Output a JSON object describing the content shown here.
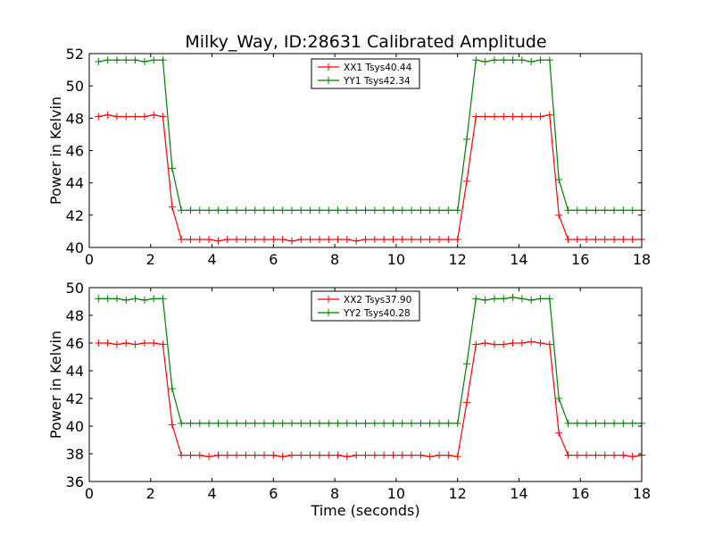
{
  "figure": {
    "title": "Milky_Way, ID:28631 Calibrated Amplitude"
  },
  "chart_data": [
    {
      "type": "line",
      "xlabel": "",
      "ylabel": "Power in Kelvin",
      "xlim": [
        0,
        18
      ],
      "ylim": [
        40,
        52
      ],
      "xticks": [
        0,
        2,
        4,
        6,
        8,
        10,
        12,
        14,
        16,
        18
      ],
      "yticks": [
        40,
        42,
        44,
        46,
        48,
        50,
        52
      ],
      "legend_position": "top-center",
      "x": [
        0.3,
        0.6,
        0.9,
        1.2,
        1.5,
        1.8,
        2.1,
        2.4,
        2.7,
        3.0,
        3.3,
        3.6,
        3.9,
        4.2,
        4.5,
        4.8,
        5.1,
        5.4,
        5.7,
        6.0,
        6.3,
        6.6,
        6.9,
        7.2,
        7.5,
        7.8,
        8.1,
        8.4,
        8.7,
        9.0,
        9.3,
        9.6,
        9.9,
        10.2,
        10.5,
        10.8,
        11.1,
        11.4,
        11.7,
        12.0,
        12.3,
        12.6,
        12.9,
        13.2,
        13.5,
        13.8,
        14.1,
        14.4,
        14.7,
        15.0,
        15.3,
        15.6,
        15.9,
        16.2,
        16.5,
        16.8,
        17.1,
        17.4,
        17.7,
        18.0
      ],
      "series": [
        {
          "name": "XX1 Tsys40.44",
          "color": "#ff0000",
          "values": [
            48.1,
            48.2,
            48.1,
            48.1,
            48.1,
            48.1,
            48.2,
            48.1,
            42.5,
            40.5,
            40.5,
            40.5,
            40.5,
            40.4,
            40.5,
            40.5,
            40.5,
            40.5,
            40.5,
            40.5,
            40.5,
            40.4,
            40.5,
            40.5,
            40.5,
            40.5,
            40.5,
            40.5,
            40.4,
            40.5,
            40.5,
            40.5,
            40.5,
            40.5,
            40.5,
            40.5,
            40.5,
            40.5,
            40.5,
            40.5,
            44.1,
            48.1,
            48.1,
            48.1,
            48.1,
            48.1,
            48.1,
            48.1,
            48.1,
            48.2,
            42.0,
            40.5,
            40.5,
            40.5,
            40.5,
            40.5,
            40.5,
            40.5,
            40.5,
            40.5
          ]
        },
        {
          "name": "YY1 Tsys42.34",
          "color": "#008000",
          "values": [
            51.5,
            51.6,
            51.6,
            51.6,
            51.6,
            51.5,
            51.6,
            51.6,
            44.9,
            42.3,
            42.3,
            42.3,
            42.3,
            42.3,
            42.3,
            42.3,
            42.3,
            42.3,
            42.3,
            42.3,
            42.3,
            42.3,
            42.3,
            42.3,
            42.3,
            42.3,
            42.3,
            42.3,
            42.3,
            42.3,
            42.3,
            42.3,
            42.3,
            42.3,
            42.3,
            42.3,
            42.3,
            42.3,
            42.3,
            42.3,
            46.7,
            51.6,
            51.5,
            51.6,
            51.6,
            51.6,
            51.6,
            51.5,
            51.6,
            51.6,
            44.2,
            42.3,
            42.3,
            42.3,
            42.3,
            42.3,
            42.3,
            42.3,
            42.3,
            42.3
          ]
        }
      ]
    },
    {
      "type": "line",
      "xlabel": "Time (seconds)",
      "ylabel": "Power in Kelvin",
      "xlim": [
        0,
        18
      ],
      "ylim": [
        36,
        50
      ],
      "xticks": [
        0,
        2,
        4,
        6,
        8,
        10,
        12,
        14,
        16,
        18
      ],
      "yticks": [
        36,
        38,
        40,
        42,
        44,
        46,
        48,
        50
      ],
      "legend_position": "top-center",
      "x": [
        0.3,
        0.6,
        0.9,
        1.2,
        1.5,
        1.8,
        2.1,
        2.4,
        2.7,
        3.0,
        3.3,
        3.6,
        3.9,
        4.2,
        4.5,
        4.8,
        5.1,
        5.4,
        5.7,
        6.0,
        6.3,
        6.6,
        6.9,
        7.2,
        7.5,
        7.8,
        8.1,
        8.4,
        8.7,
        9.0,
        9.3,
        9.6,
        9.9,
        10.2,
        10.5,
        10.8,
        11.1,
        11.4,
        11.7,
        12.0,
        12.3,
        12.6,
        12.9,
        13.2,
        13.5,
        13.8,
        14.1,
        14.4,
        14.7,
        15.0,
        15.3,
        15.6,
        15.9,
        16.2,
        16.5,
        16.8,
        17.1,
        17.4,
        17.7,
        18.0
      ],
      "series": [
        {
          "name": "XX2 Tsys37.90",
          "color": "#ff0000",
          "values": [
            46.0,
            46.0,
            45.9,
            46.0,
            45.9,
            46.0,
            46.0,
            45.9,
            40.1,
            37.9,
            37.9,
            37.9,
            37.8,
            37.9,
            37.9,
            37.9,
            37.9,
            37.9,
            37.9,
            37.9,
            37.8,
            37.9,
            37.9,
            37.9,
            37.9,
            37.9,
            37.9,
            37.8,
            37.9,
            37.9,
            37.9,
            37.9,
            37.9,
            37.9,
            37.9,
            37.9,
            37.8,
            37.9,
            37.9,
            37.8,
            41.7,
            45.9,
            46.0,
            45.9,
            45.9,
            46.0,
            46.0,
            46.1,
            46.0,
            45.9,
            39.5,
            37.9,
            37.9,
            37.9,
            37.9,
            37.9,
            37.9,
            37.9,
            37.8,
            37.9
          ]
        },
        {
          "name": "YY2 Tsys40.28",
          "color": "#008000",
          "values": [
            49.2,
            49.2,
            49.2,
            49.1,
            49.2,
            49.1,
            49.2,
            49.2,
            42.7,
            40.2,
            40.2,
            40.2,
            40.2,
            40.2,
            40.2,
            40.2,
            40.2,
            40.2,
            40.2,
            40.2,
            40.2,
            40.2,
            40.2,
            40.2,
            40.2,
            40.2,
            40.2,
            40.2,
            40.2,
            40.2,
            40.2,
            40.2,
            40.2,
            40.2,
            40.2,
            40.2,
            40.2,
            40.2,
            40.2,
            40.2,
            44.5,
            49.2,
            49.1,
            49.2,
            49.2,
            49.3,
            49.2,
            49.1,
            49.2,
            49.2,
            42.0,
            40.2,
            40.2,
            40.2,
            40.2,
            40.2,
            40.2,
            40.2,
            40.2,
            40.2
          ]
        }
      ]
    }
  ]
}
